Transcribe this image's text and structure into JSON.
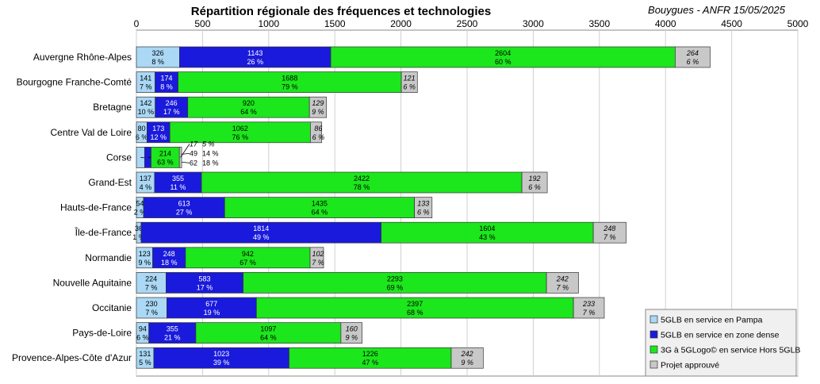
{
  "chart_data": {
    "type": "bar",
    "orientation": "horizontal",
    "stacked": true,
    "title": "Répartition régionale des fréquences et technologies",
    "subtitle": "Bouygues - ANFR 15/05/2025",
    "xlim": [
      0,
      5000
    ],
    "xticks": [
      "0",
      "500",
      "1000",
      "1500",
      "2000",
      "2500",
      "3000",
      "3500",
      "4000",
      "4500",
      "5000"
    ],
    "grid": true,
    "legend_position": "bottom-right",
    "categories": [
      "Auvergne Rhône-Alpes",
      "Bourgogne Franche-Comté",
      "Bretagne",
      "Centre Val de Loire",
      "Corse",
      "Grand-Est",
      "Hauts-de-France",
      "Île-de-France",
      "Normandie",
      "Nouvelle Aquitaine",
      "Occitanie",
      "Pays-de-Loire",
      "Provence-Alpes-Côte d'Azur"
    ],
    "series": [
      {
        "name": "5GLB en service en Pampa",
        "color": "#aad8f5",
        "values": [
          326,
          141,
          142,
          80,
          62,
          137,
          54,
          36,
          123,
          224,
          230,
          94,
          131
        ],
        "percents": [
          "8 %",
          "7 %",
          "10 %",
          "6 %",
          "18 %",
          "4 %",
          "2 %",
          "1 %",
          "9 %",
          "7 %",
          "7 %",
          "6 %",
          "5 %"
        ]
      },
      {
        "name": "5GLB en service en zone dense",
        "color": "#1a1adc",
        "values": [
          1143,
          174,
          246,
          173,
          49,
          355,
          613,
          1814,
          248,
          583,
          677,
          355,
          1023
        ],
        "percents": [
          "26 %",
          "8 %",
          "17 %",
          "12 %",
          "14 %",
          "11 %",
          "27 %",
          "49 %",
          "18 %",
          "17 %",
          "19 %",
          "21 %",
          "39 %"
        ]
      },
      {
        "name": "3G à 5GLogo© en service Hors 5GLB",
        "color": "#1ce61c",
        "values": [
          2604,
          1688,
          920,
          1062,
          214,
          2422,
          1435,
          1604,
          942,
          2293,
          2397,
          1097,
          1226
        ],
        "percents": [
          "60 %",
          "79 %",
          "64 %",
          "76 %",
          "63 %",
          "78 %",
          "64 %",
          "43 %",
          "67 %",
          "69 %",
          "68 %",
          "64 %",
          "47 %"
        ]
      },
      {
        "name": "Projet approuvé",
        "color": "#c8c8c8",
        "values": [
          264,
          121,
          129,
          86,
          17,
          192,
          133,
          248,
          102,
          242,
          233,
          160,
          242
        ],
        "percents": [
          "6 %",
          "6 %",
          "9 %",
          "6 %",
          "5 %",
          "6 %",
          "6 %",
          "7 %",
          "7 %",
          "7 %",
          "7 %",
          "9 %",
          "9 %"
        ]
      }
    ]
  }
}
